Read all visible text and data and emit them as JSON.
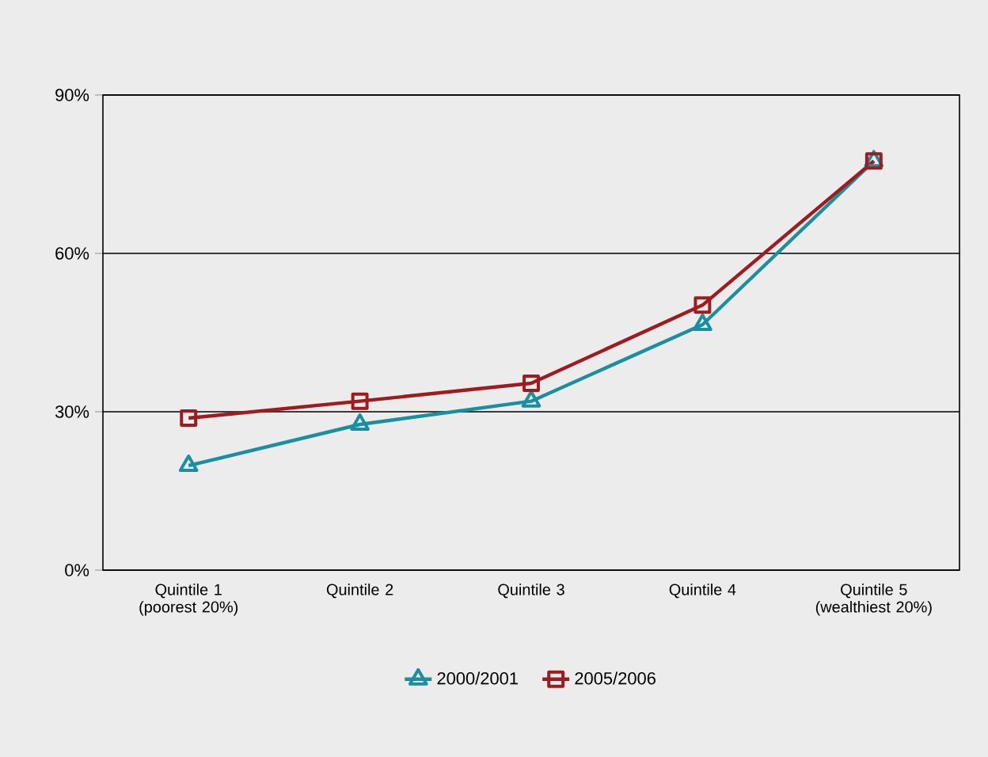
{
  "chart_data": {
    "type": "line",
    "categories": [
      "Quintile 1 (poorest 20%)",
      "Quintile 2",
      "Quintile 3",
      "Quintile 4",
      "Quintile 5 (wealthiest 20%)"
    ],
    "series": [
      {
        "name": "2000/2001",
        "color": "#1a8fa0",
        "marker": "triangle",
        "values": [
          19.8,
          27.6,
          32,
          46.5,
          77.5
        ]
      },
      {
        "name": "2005/2006",
        "color": "#9e1b20",
        "marker": "square",
        "values": [
          28.8,
          32,
          35.4,
          50.2,
          77.5
        ]
      }
    ],
    "ylim": [
      0,
      90
    ],
    "yticks": [
      {
        "value": 0,
        "label": "0%"
      },
      {
        "value": 30,
        "label": "30%"
      },
      {
        "value": 60,
        "label": "60%"
      },
      {
        "value": 90,
        "label": "90%"
      }
    ],
    "grid": "y",
    "legend": "bottom",
    "line_style": "solid"
  }
}
